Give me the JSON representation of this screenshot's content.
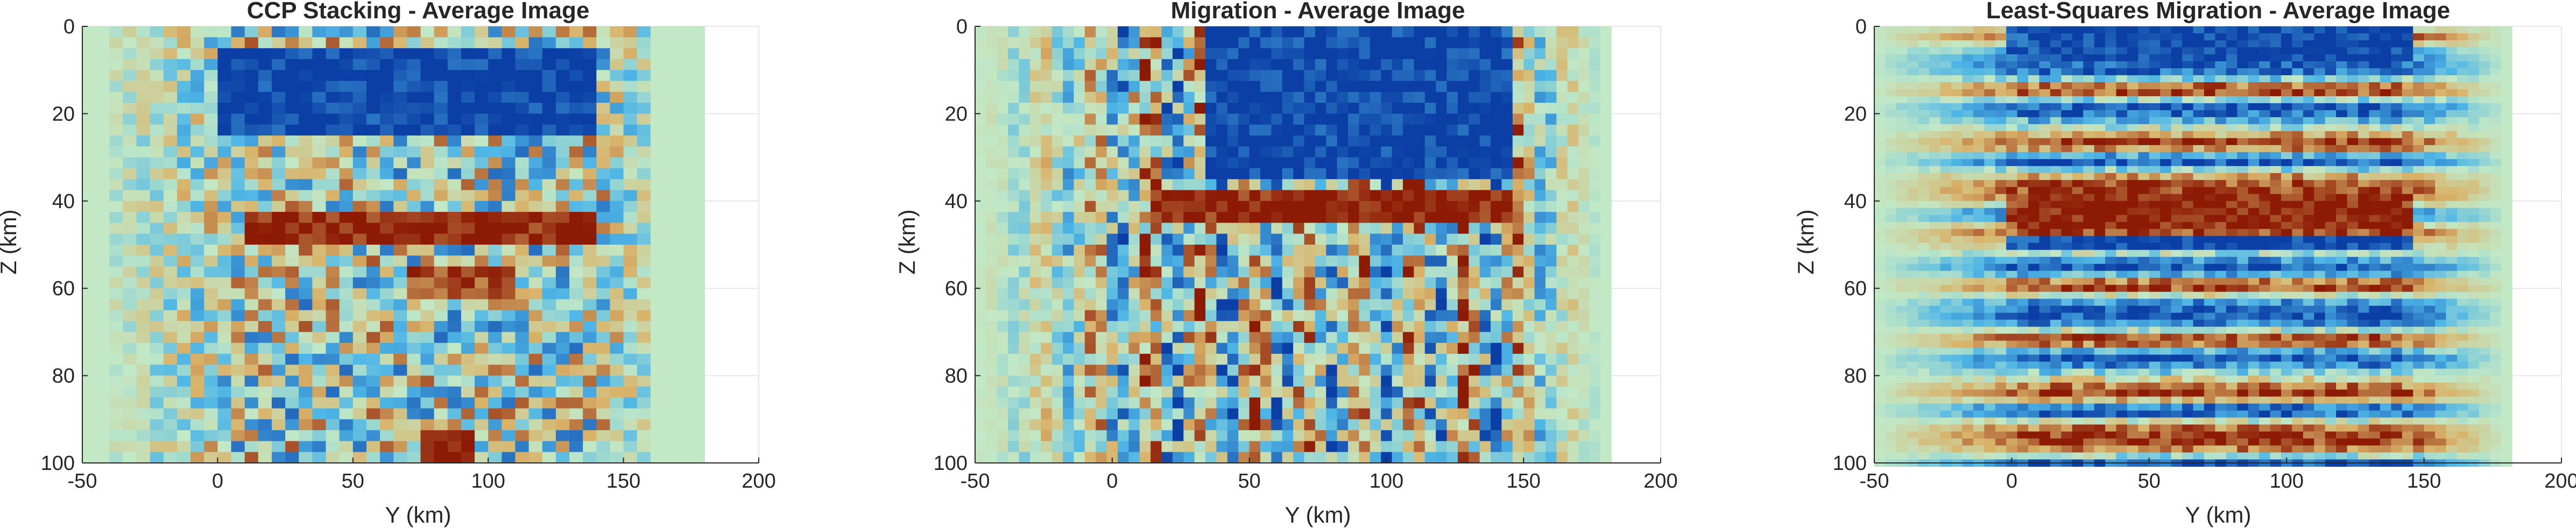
{
  "palette": {
    "low": "#0b3fa6",
    "mid_low": "#4fb6e6",
    "mid": "#c2e8c6",
    "mid_high": "#d9b36a",
    "high": "#8c1a05",
    "axis": "#262626",
    "grid": "#e6e6e6"
  },
  "chart_data": [
    {
      "type": "heatmap",
      "title": "CCP Stacking - Average Image",
      "xlabel": "Y (km)",
      "ylabel": "Z (km)",
      "xlim": [
        -50,
        200
      ],
      "ylim": [
        0,
        100
      ],
      "y_reversed": true,
      "xticks": [
        -50,
        0,
        50,
        100,
        150,
        200
      ],
      "yticks": [
        0,
        20,
        40,
        60,
        80,
        100
      ],
      "grid": true,
      "data_extent_y": [
        -50,
        180
      ],
      "image_texture": "blocky",
      "features": [
        {
          "y": [
            0,
            140
          ],
          "z": [
            5,
            25
          ],
          "value": -1.0,
          "desc": "strong negative (blue) shallow band"
        },
        {
          "y": [
            10,
            140
          ],
          "z": [
            42,
            50
          ],
          "value": 1.0,
          "desc": "strong positive (red) band near 45 km"
        },
        {
          "y": [
            70,
            110
          ],
          "z": [
            55,
            62
          ],
          "value": 0.8,
          "desc": "positive patch"
        },
        {
          "y": [
            75,
            95
          ],
          "z": [
            92,
            100
          ],
          "value": 1.0,
          "desc": "positive patch at bottom"
        }
      ]
    },
    {
      "type": "heatmap",
      "title": "Migration - Average Image",
      "xlabel": "Y (km)",
      "ylabel": "Z (km)",
      "xlim": [
        -50,
        200
      ],
      "ylim": [
        0,
        100
      ],
      "y_reversed": true,
      "xticks": [
        -50,
        0,
        50,
        100,
        150,
        200
      ],
      "yticks": [
        0,
        20,
        40,
        60,
        80,
        100
      ],
      "grid": true,
      "data_extent_y": [
        -50,
        180
      ],
      "image_texture": "columns",
      "features": [
        {
          "y": [
            35,
            145
          ],
          "z": [
            0,
            35
          ],
          "value": -1.0,
          "desc": "strong negative (blue) shallow region"
        },
        {
          "y": [
            15,
            145
          ],
          "z": [
            38,
            46
          ],
          "value": 1.0,
          "desc": "positive (red) band near 42 km"
        }
      ]
    },
    {
      "type": "heatmap",
      "title": "Least-Squares Migration - Average Image",
      "xlabel": "Y (km)",
      "ylabel": "Z (km)",
      "xlim": [
        -50,
        200
      ],
      "ylim": [
        0,
        100
      ],
      "y_reversed": true,
      "xticks": [
        -50,
        0,
        50,
        100,
        150,
        200
      ],
      "yticks": [
        0,
        20,
        40,
        60,
        80,
        100
      ],
      "grid": true,
      "data_extent_y": [
        -50,
        180
      ],
      "image_texture": "layers",
      "features": [
        {
          "y": [
            0,
            145
          ],
          "z": [
            0,
            8
          ],
          "value": -1.0,
          "desc": "negative layer at top"
        },
        {
          "y": [
            0,
            145
          ],
          "z": [
            38,
            46
          ],
          "value": 1.0,
          "desc": "positive layer near 42 km"
        },
        {
          "y": [
            0,
            145
          ],
          "z": [
            48,
            52
          ],
          "value": -1.0,
          "desc": "negative layer below"
        }
      ]
    }
  ]
}
